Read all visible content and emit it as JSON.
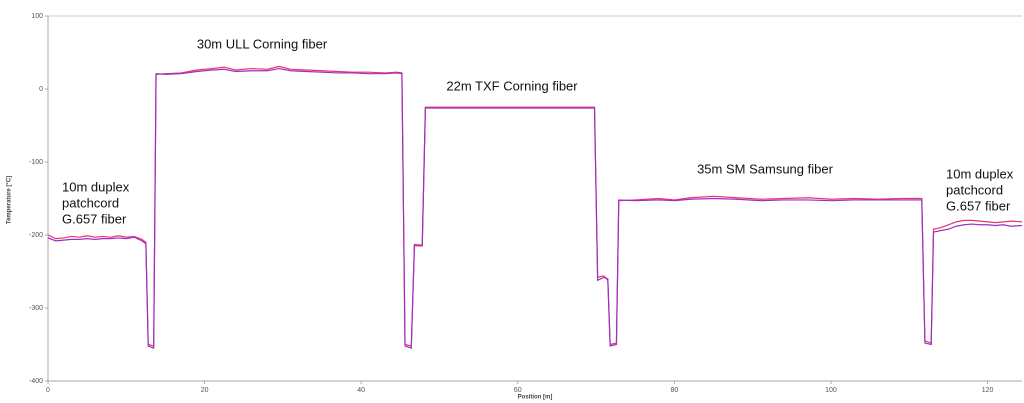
{
  "chart_data": {
    "type": "line",
    "x_label": "Position [m]",
    "y_label": "Temperature [°C]",
    "x": [
      0,
      1,
      2,
      3,
      4,
      5,
      6,
      7,
      8,
      9,
      10,
      11,
      12,
      12.5,
      12.8,
      13.5,
      13.8,
      15,
      17,
      19,
      21,
      22.5,
      24,
      26,
      28,
      29.5,
      31,
      33,
      35,
      37,
      39,
      41,
      43,
      44.5,
      45.2,
      45.6,
      46.4,
      46.8,
      47.8,
      48.2,
      50,
      55,
      60,
      65,
      69.8,
      70.2,
      71,
      71.5,
      71.8,
      72.6,
      72.9,
      75,
      78,
      80,
      82,
      85,
      88,
      91,
      94,
      97,
      100,
      103,
      106,
      109,
      111.6,
      112,
      112.8,
      113.1,
      114,
      115,
      116,
      117,
      118,
      119,
      120,
      121,
      122,
      123,
      124.4
    ],
    "series": [
      {
        "color": "#e8336e",
        "values": [
          -200,
          -205,
          -204,
          -202,
          -203,
          -201,
          -203,
          -202,
          -203,
          -201,
          -203,
          -202,
          -206,
          -210,
          -350,
          -352,
          20,
          21,
          22,
          26,
          28,
          30,
          26,
          28,
          27,
          31,
          27,
          26,
          25,
          24,
          23,
          23,
          22,
          23,
          22,
          -350,
          -352,
          -215,
          -215,
          -25,
          -25,
          -25,
          -25,
          -25,
          -25,
          -258,
          -256,
          -262,
          -350,
          -348,
          -153,
          -152,
          -150,
          -152,
          -149,
          -147,
          -149,
          -151,
          -150,
          -149,
          -151,
          -150,
          -151,
          -150,
          -150,
          -345,
          -348,
          -192,
          -190,
          -186,
          -182,
          -180,
          -180,
          -181,
          -182,
          -183,
          -182,
          -181,
          -182
        ]
      },
      {
        "color": "#9b30c0",
        "values": [
          -204,
          -208,
          -207,
          -206,
          -206,
          -205,
          -206,
          -205,
          -205,
          -204,
          -205,
          -203,
          -208,
          -212,
          -352,
          -355,
          21,
          20,
          21,
          24,
          26,
          27,
          24,
          25,
          25,
          28,
          25,
          24,
          23,
          22,
          22,
          21,
          21,
          22,
          21,
          -352,
          -355,
          -213,
          -214,
          -26,
          -26,
          -26,
          -26,
          -26,
          -26,
          -262,
          -258,
          -260,
          -352,
          -350,
          -152,
          -153,
          -152,
          -153,
          -151,
          -150,
          -151,
          -153,
          -152,
          -152,
          -153,
          -152,
          -152,
          -152,
          -152,
          -348,
          -350,
          -196,
          -194,
          -192,
          -188,
          -186,
          -185,
          -186,
          -186,
          -187,
          -186,
          -188,
          -187
        ]
      }
    ],
    "xlim": [
      0,
      124.4
    ],
    "ylim": [
      -400,
      100
    ],
    "xticks": [
      0,
      20,
      40,
      60,
      80,
      100,
      120
    ],
    "yticks": [
      -400,
      -300,
      -200,
      -100,
      0,
      100
    ],
    "annotations": [
      [
        "10m duplex",
        "patchcord",
        "G.657 fiber"
      ],
      [
        "30m ULL Corning fiber"
      ],
      [
        "22m TXF Corning fiber"
      ],
      [
        "35m SM Samsung fiber"
      ],
      [
        "10m duplex",
        "patchcord",
        "G.657 fiber"
      ]
    ]
  }
}
